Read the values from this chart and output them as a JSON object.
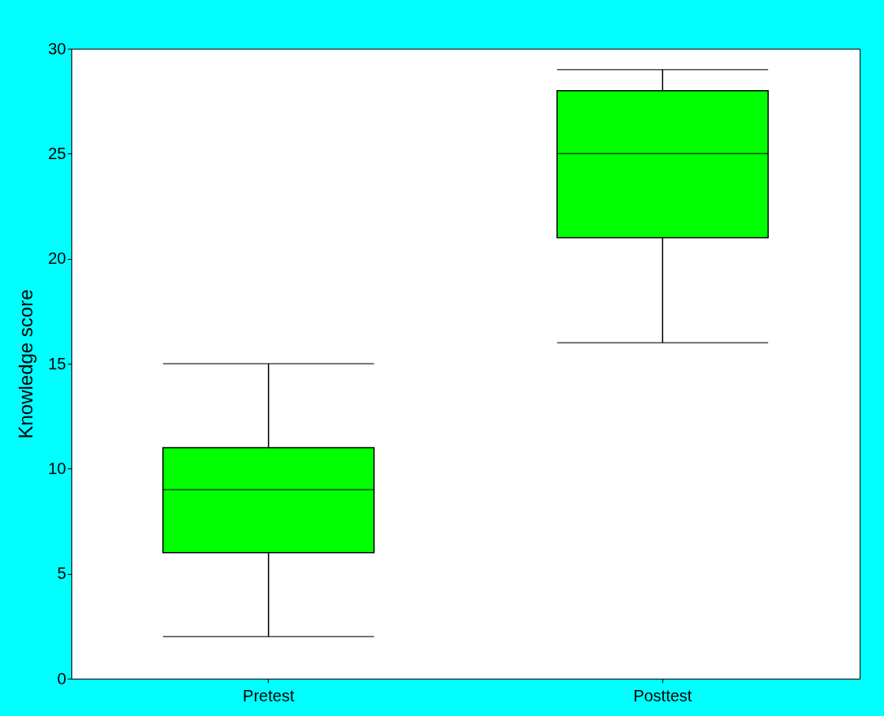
{
  "chart_data": {
    "type": "box",
    "ylabel": "Knowledge score",
    "categories": [
      "Pretest",
      "Posttest"
    ],
    "series": [
      {
        "color": "#00ff00",
        "boxes": [
          {
            "low": 2,
            "q1": 6,
            "median": 9,
            "q3": 11,
            "high": 15
          },
          {
            "low": 16,
            "q1": 21,
            "median": 25,
            "q3": 28,
            "high": 29
          }
        ]
      }
    ],
    "ylim": [
      0,
      30
    ],
    "yticks": [
      0,
      5,
      10,
      15,
      20,
      25,
      30
    ]
  }
}
